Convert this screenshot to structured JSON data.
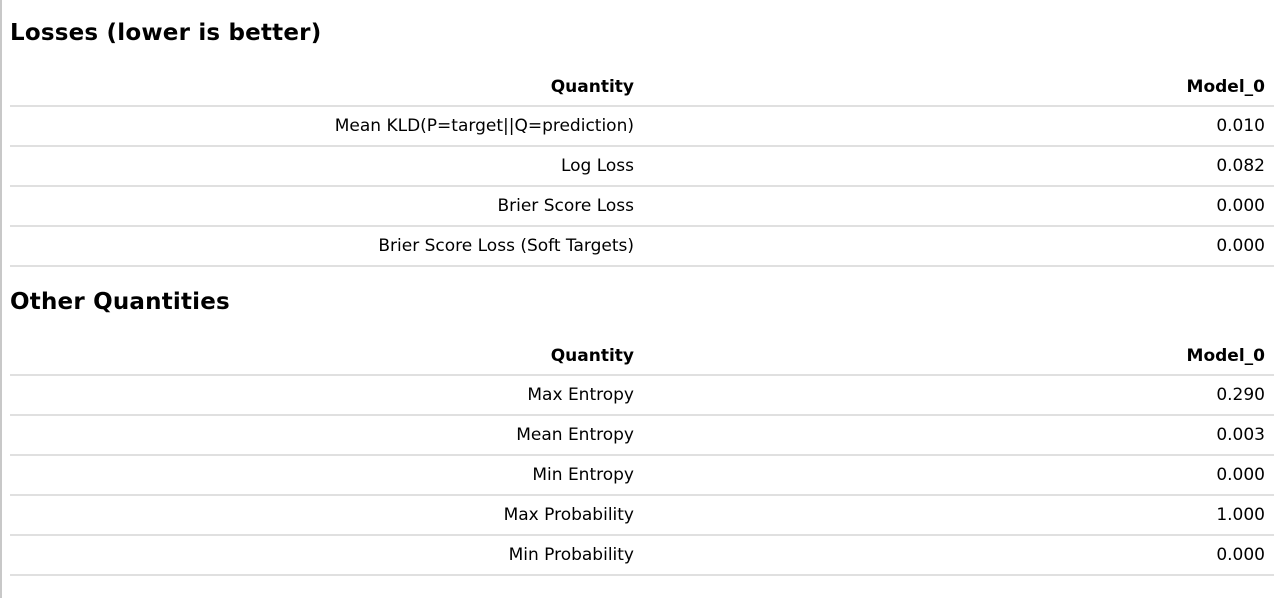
{
  "losses": {
    "title": "Losses (lower is better)",
    "columns": [
      "Quantity",
      "Model_0"
    ],
    "rows": [
      {
        "quantity": "Mean KLD(P=target||Q=prediction)",
        "value": "0.010"
      },
      {
        "quantity": "Log Loss",
        "value": "0.082"
      },
      {
        "quantity": "Brier Score Loss",
        "value": "0.000"
      },
      {
        "quantity": "Brier Score Loss (Soft Targets)",
        "value": "0.000"
      }
    ]
  },
  "other": {
    "title": "Other Quantities",
    "columns": [
      "Quantity",
      "Model_0"
    ],
    "rows": [
      {
        "quantity": "Max Entropy",
        "value": "0.290"
      },
      {
        "quantity": "Mean Entropy",
        "value": "0.003"
      },
      {
        "quantity": "Min Entropy",
        "value": "0.000"
      },
      {
        "quantity": "Max Probability",
        "value": "1.000"
      },
      {
        "quantity": "Min Probability",
        "value": "0.000"
      }
    ]
  },
  "colors": {
    "rule": "#e0e0e0",
    "text": "#000000",
    "background": "#ffffff"
  }
}
